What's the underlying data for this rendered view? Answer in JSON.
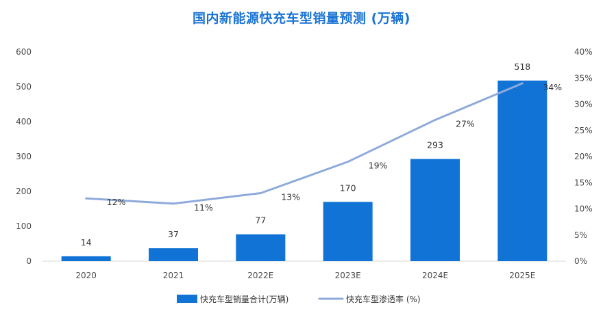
{
  "chart_data": {
    "type": "bar",
    "title": "国内新能源快充车型销量预测 (万辆)",
    "categories": [
      "2020",
      "2021",
      "2022E",
      "2023E",
      "2024E",
      "2025E"
    ],
    "series": [
      {
        "name": "快充车型销量合计(万辆)",
        "type": "bar",
        "axis": "left",
        "values": [
          14,
          37,
          77,
          170,
          293,
          518
        ],
        "labels": [
          "14",
          "37",
          "77",
          "170",
          "293",
          "518"
        ],
        "color": "#1273d6"
      },
      {
        "name": "快充车型渗透率 (%)",
        "type": "line",
        "axis": "right",
        "values": [
          12,
          11,
          13,
          19,
          27,
          34
        ],
        "labels": [
          "12%",
          "11%",
          "13%",
          "19%",
          "27%",
          "34%"
        ],
        "color": "#8eaadb"
      }
    ],
    "y_left": {
      "ylim": [
        0,
        600
      ],
      "ticks": [
        "0",
        "100",
        "200",
        "300",
        "400",
        "500",
        "600"
      ]
    },
    "y_right": {
      "ylim": [
        0,
        40
      ],
      "ticks": [
        "0%",
        "5%",
        "10%",
        "15%",
        "20%",
        "25%",
        "30%",
        "35%",
        "40%"
      ]
    },
    "grid": false,
    "legend_position": "bottom"
  }
}
